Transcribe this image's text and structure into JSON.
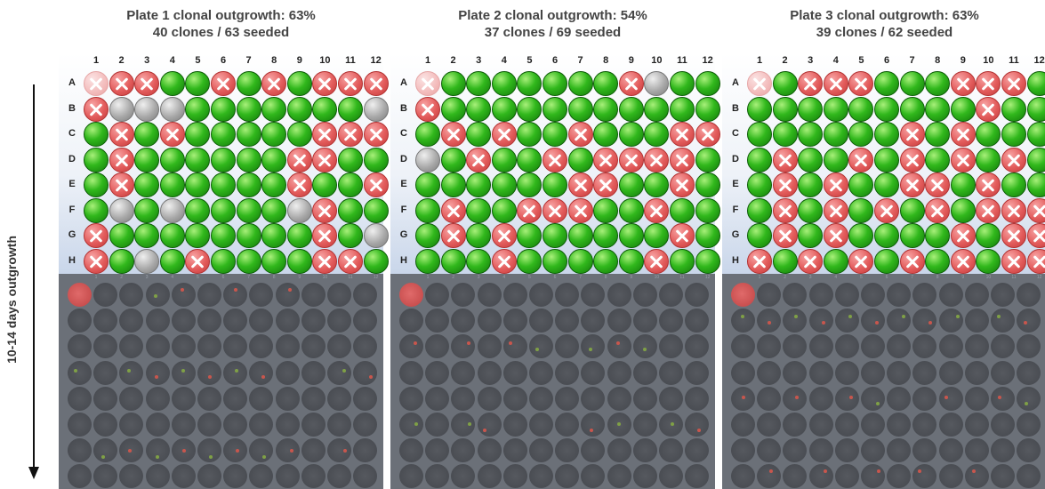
{
  "side_label": {
    "text": "10-14 days outgrowth"
  },
  "columns": [
    "1",
    "2",
    "3",
    "4",
    "5",
    "6",
    "7",
    "8",
    "9",
    "10",
    "11",
    "12"
  ],
  "rows": [
    "A",
    "B",
    "C",
    "D",
    "E",
    "F",
    "G",
    "H"
  ],
  "legend_colors": {
    "growth": "#31b81c",
    "no_growth": "#e35c5c",
    "empty": "#a9a9a9"
  },
  "plates": [
    {
      "title": "Plate 1 clonal outgrowth: 63%",
      "subtitle": "40 clones / 63 seeded",
      "grid": [
        "fxxggxgxgxxx",
        "xe.eggggggg.",
        "gxgxgggggxxx",
        "gxggggggxxgg",
        "gxggggggxggx",
        "gegeggggexgg",
        "xggggggggxge",
        "xgegxggggxxg"
      ]
    },
    {
      "title": "Plate 2 clonal outgrowth: 54%",
      "subtitle": "37 clones / 69 seeded",
      "grid": [
        "fgggggggxegg",
        "xggggggggggg",
        "gxgxggxgggxx",
        "egxggxgxxxxg",
        "ggggggxxggxg",
        "gxggxxxggxgg",
        "gxgxggggggxg",
        "gggxgggggxgg"
      ]
    },
    {
      "title": "Plate 3 clonal outgrowth: 63%",
      "subtitle": "39 clones / 62 seeded",
      "grid": [
        "fgxxxgggxxxg",
        "gggggggggxgg",
        "ggggggxgxggg",
        "gxggxgxgxgxg",
        "gxgxggxxgxgg",
        "gxgxgxgxgxxx",
        "gxgxggggxgxx",
        "xgxgxgxgxgxx"
      ]
    }
  ]
}
